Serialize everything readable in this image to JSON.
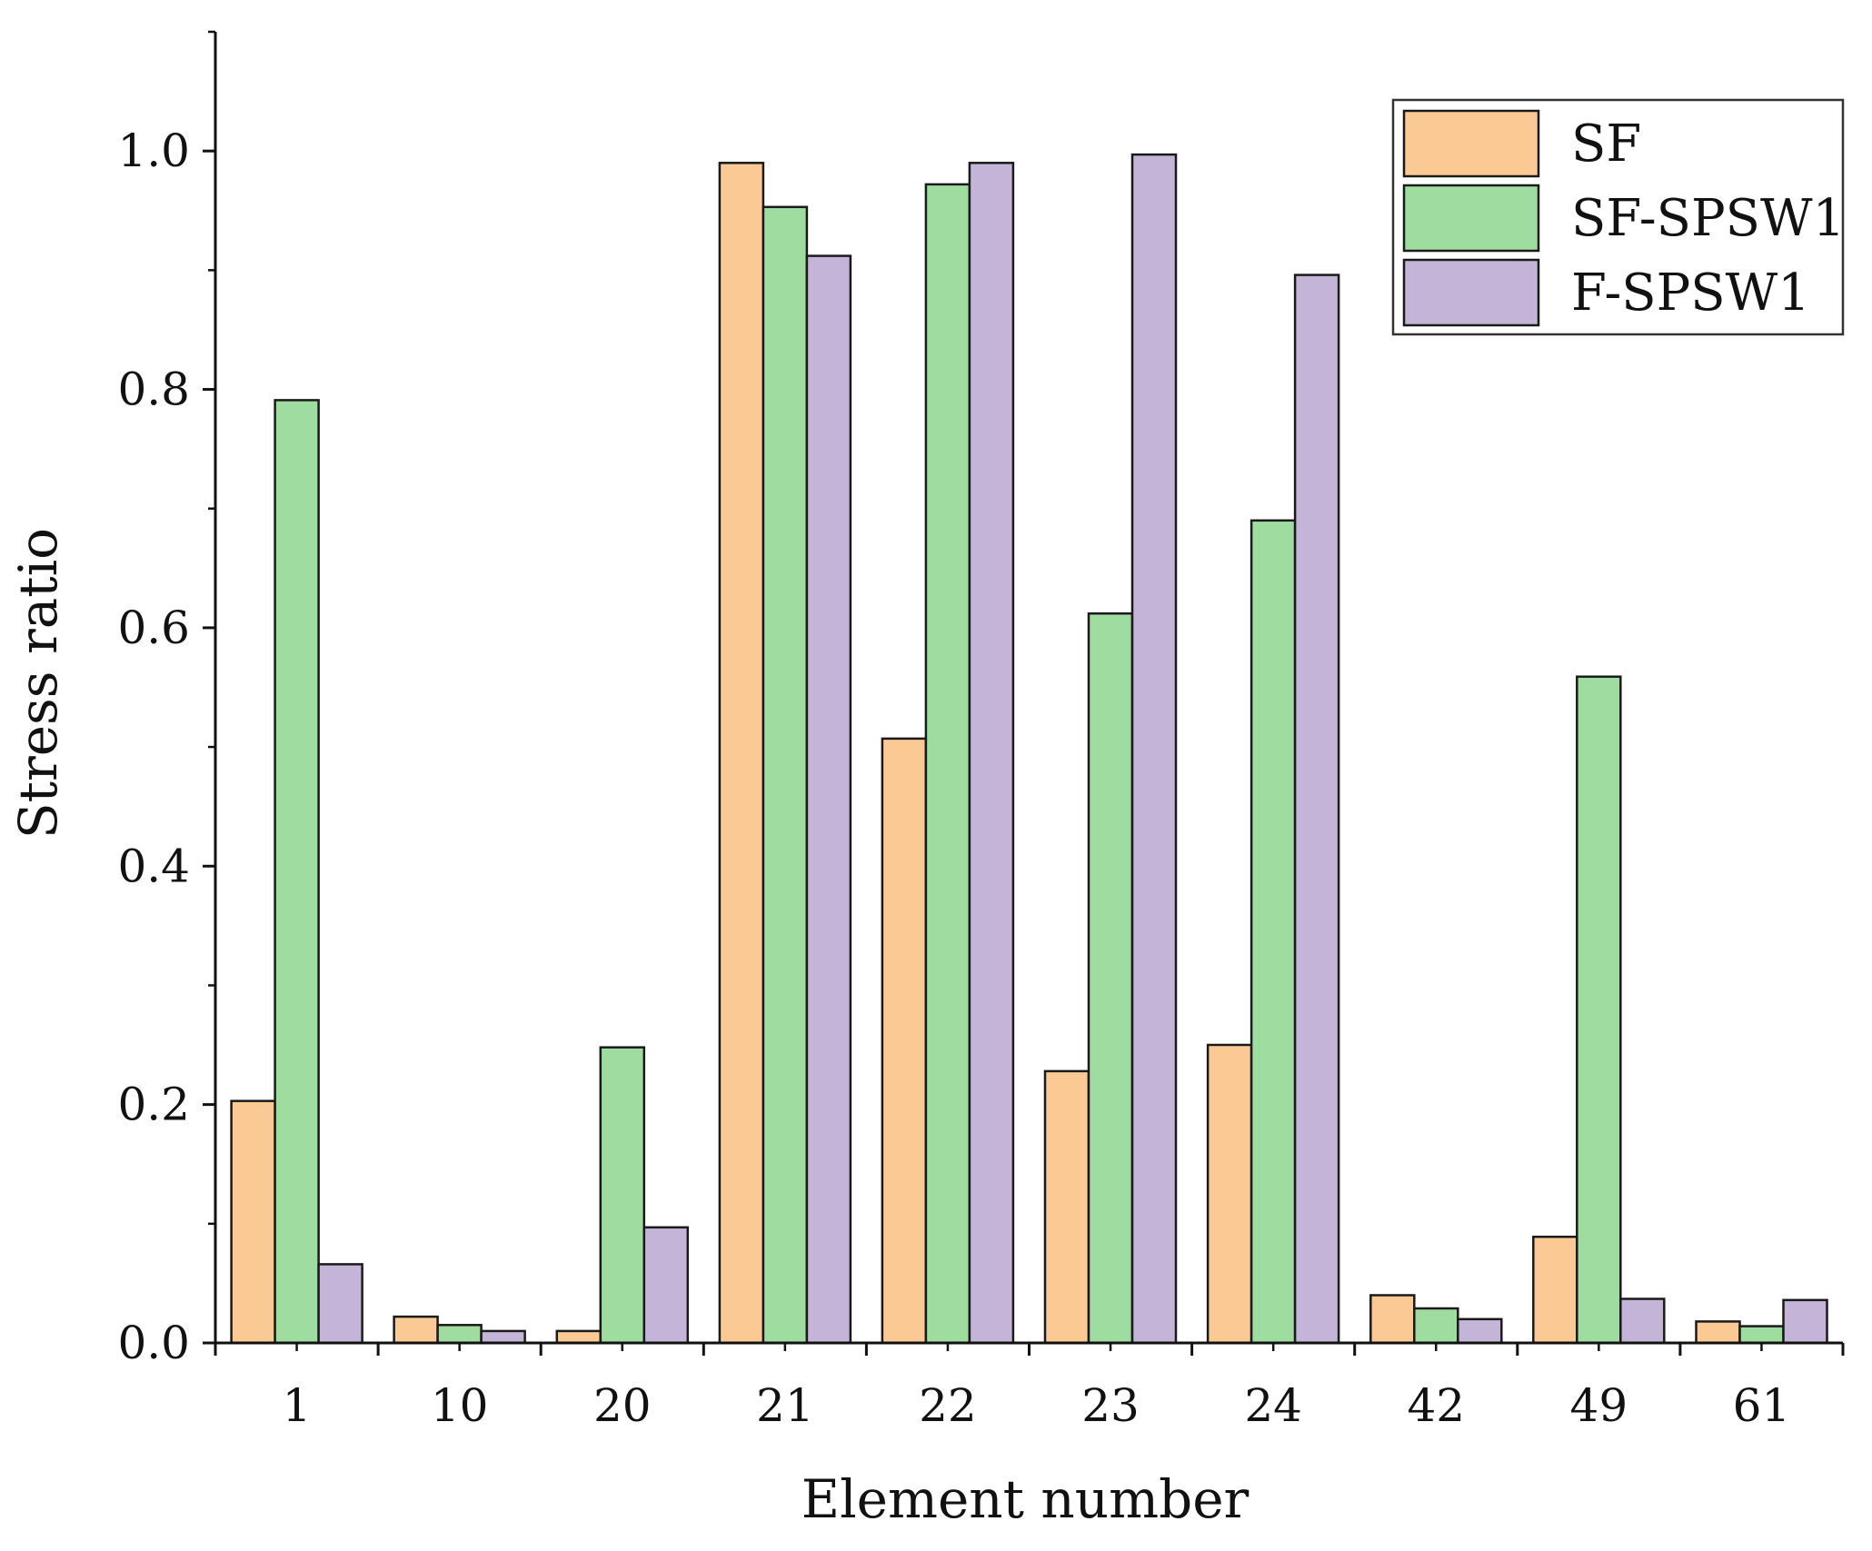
{
  "chart_data": {
    "type": "bar",
    "title": "",
    "xlabel": "Element number",
    "ylabel": "Stress ratio",
    "ylim": [
      0,
      1.1
    ],
    "yticks": [
      "0.0",
      "0.2",
      "0.4",
      "0.6",
      "0.8",
      "1.0"
    ],
    "grid": false,
    "legend_position": "top-right",
    "categories": [
      "1",
      "10",
      "20",
      "21",
      "22",
      "23",
      "24",
      "42",
      "49",
      "61"
    ],
    "series": [
      {
        "name": "SF",
        "color": "#FBC994",
        "values": [
          0.203,
          0.022,
          0.01,
          0.99,
          0.507,
          0.228,
          0.25,
          0.04,
          0.089,
          0.018
        ]
      },
      {
        "name": "SF-SPSW1",
        "color": "#9FDCA0",
        "values": [
          0.791,
          0.015,
          0.248,
          0.953,
          0.972,
          0.612,
          0.69,
          0.029,
          0.559,
          0.014
        ]
      },
      {
        "name": "F-SPSW1",
        "color": "#C3B4D8",
        "values": [
          0.066,
          0.01,
          0.097,
          0.912,
          0.99,
          0.997,
          0.896,
          0.02,
          0.037,
          0.036
        ]
      }
    ]
  }
}
